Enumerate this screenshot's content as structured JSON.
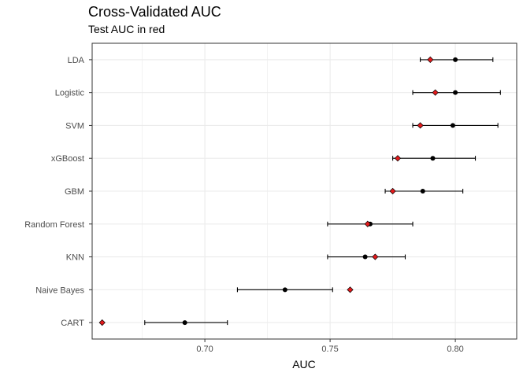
{
  "chart_data": {
    "type": "scatter",
    "title": "Cross-Validated AUC",
    "subtitle": "Test AUC in red",
    "xlabel": "AUC",
    "ylabel": "",
    "xlim": [
      0.655,
      0.8245
    ],
    "xticks": [
      0.7,
      0.75,
      0.8
    ],
    "xtick_labels": [
      "0.70",
      "0.75",
      "0.80"
    ],
    "grid": true,
    "colors": {
      "cv": "#000000",
      "test": "#e31a1c",
      "grid": "#ebebeb",
      "panel_border": "#333333"
    },
    "models": [
      {
        "label": "LDA",
        "cv_auc": 0.8,
        "cv_low": 0.786,
        "cv_high": 0.815,
        "test_auc": 0.79
      },
      {
        "label": "Logistic",
        "cv_auc": 0.8,
        "cv_low": 0.783,
        "cv_high": 0.818,
        "test_auc": 0.792
      },
      {
        "label": "SVM",
        "cv_auc": 0.799,
        "cv_low": 0.783,
        "cv_high": 0.817,
        "test_auc": 0.786
      },
      {
        "label": "xGBoost",
        "cv_auc": 0.791,
        "cv_low": 0.775,
        "cv_high": 0.808,
        "test_auc": 0.777
      },
      {
        "label": "GBM",
        "cv_auc": 0.787,
        "cv_low": 0.772,
        "cv_high": 0.803,
        "test_auc": 0.775
      },
      {
        "label": "Random Forest",
        "cv_auc": 0.766,
        "cv_low": 0.749,
        "cv_high": 0.783,
        "test_auc": 0.765
      },
      {
        "label": "KNN",
        "cv_auc": 0.764,
        "cv_low": 0.749,
        "cv_high": 0.78,
        "test_auc": 0.768
      },
      {
        "label": "Naive Bayes",
        "cv_auc": 0.732,
        "cv_low": 0.713,
        "cv_high": 0.751,
        "test_auc": 0.758
      },
      {
        "label": "CART",
        "cv_auc": 0.692,
        "cv_low": 0.676,
        "cv_high": 0.709,
        "test_auc": 0.659
      }
    ]
  }
}
